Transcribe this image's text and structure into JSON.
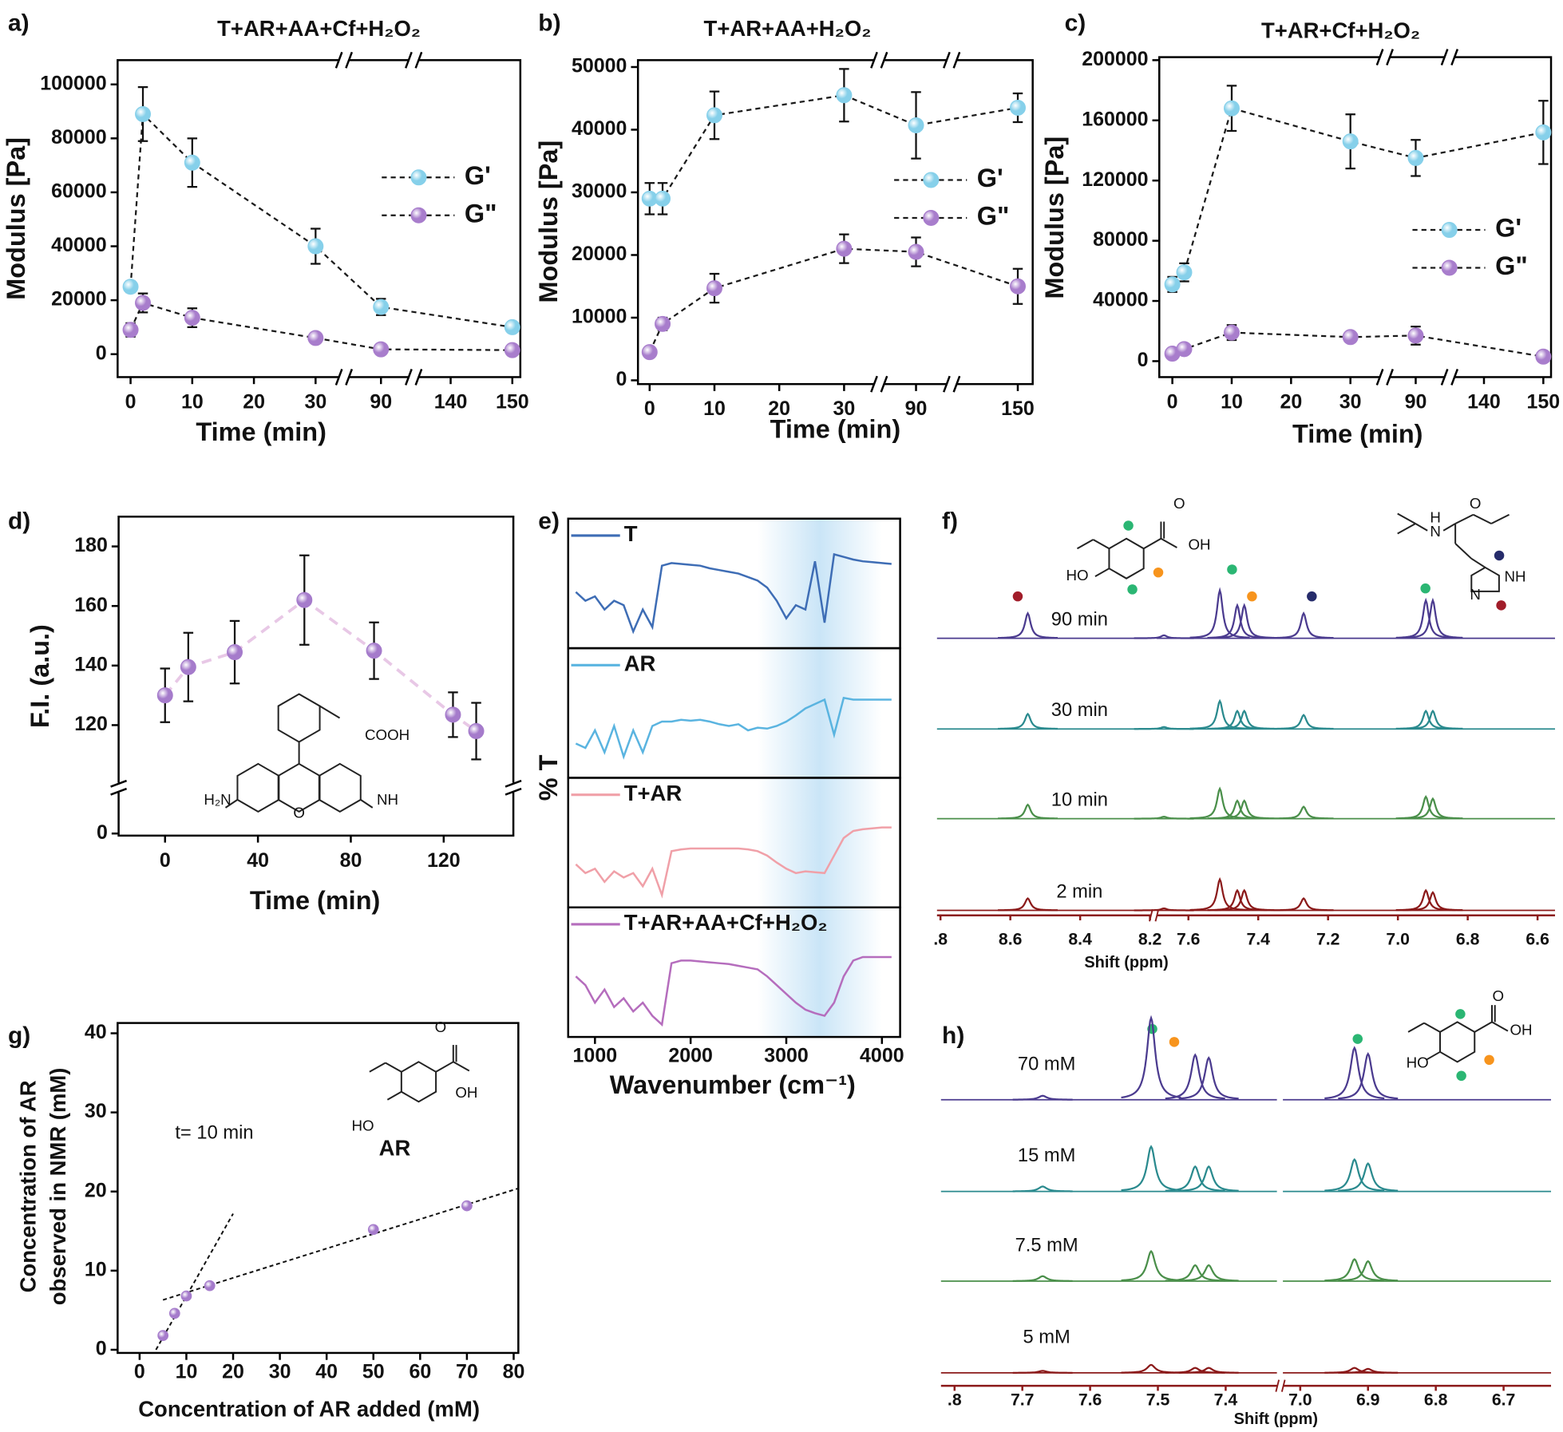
{
  "chart_data": [
    {
      "type": "line",
      "panel": "a)",
      "title": "T+AR+AA+Cf+H₂O₂",
      "x_label": "Time (min)",
      "y_label": "Modulus [Pa]",
      "xsegments": [
        [
          -2.1,
          34.6
        ],
        [
          84,
          95.3
        ],
        [
          134,
          151.3
        ]
      ],
      "xticks": [
        0,
        10,
        20,
        30,
        90,
        140,
        150
      ],
      "ylim": [
        -8500,
        109000
      ],
      "yticks": [
        0,
        20000,
        40000,
        60000,
        80000,
        100000
      ],
      "legend": "upper right",
      "x": [
        0,
        2,
        10,
        30,
        90,
        150
      ],
      "series": [
        {
          "name": "G'",
          "color": "#86d0ea",
          "line_color": "#1a1a1a",
          "values": [
            25000,
            89000,
            71000,
            40000,
            17500,
            10000
          ],
          "errors": [
            2000,
            10000,
            9000,
            6500,
            3000,
            1500
          ]
        },
        {
          "name": "G\"",
          "color": "#a87dcc",
          "line_color": "#1a1a1a",
          "values": [
            9000,
            19000,
            13500,
            6000,
            1800,
            1500
          ],
          "errors": [
            2500,
            3500,
            3500,
            1500,
            1500,
            1500
          ]
        }
      ]
    },
    {
      "type": "line",
      "panel": "b)",
      "title": "T+AR+AA+H₂O₂",
      "x_label": "Time (min)",
      "y_label": "Modulus [Pa]",
      "xsegments": [
        [
          -1.8,
          35.4
        ],
        [
          84.3,
          95.5
        ],
        [
          139.8,
          152.3
        ]
      ],
      "xticks": [
        0,
        10,
        20,
        30,
        90,
        150
      ],
      "ylim": [
        -600,
        51100
      ],
      "yticks": [
        0,
        10000,
        20000,
        30000,
        40000,
        50000
      ],
      "legend": "upper right",
      "x": [
        0,
        2,
        10,
        30,
        90,
        150
      ],
      "series": [
        {
          "name": "G'",
          "color": "#86d0ea",
          "line_color": "#1a1a1a",
          "values": [
            29000,
            29000,
            42300,
            45500,
            40700,
            43500
          ],
          "errors": [
            2500,
            2500,
            3800,
            4200,
            5300,
            2300
          ]
        },
        {
          "name": "G\"",
          "color": "#a87dcc",
          "line_color": "#1a1a1a",
          "values": [
            4500,
            9000,
            14700,
            21000,
            20500,
            15000
          ],
          "errors": [
            800,
            1000,
            2300,
            2300,
            2300,
            2800
          ]
        }
      ]
    },
    {
      "type": "line",
      "panel": "c)",
      "title": "T+AR+Cf+H₂O₂",
      "x_label": "Time (min)",
      "y_label": "Modulus [Pa]",
      "xsegments": [
        [
          -2.2,
          35.8
        ],
        [
          84.8,
          95.7
        ],
        [
          134.2,
          151.3
        ]
      ],
      "xticks": [
        0,
        10,
        20,
        30,
        90,
        140,
        150
      ],
      "ylim": [
        -10600,
        202000
      ],
      "yticks": [
        0,
        40000,
        80000,
        120000,
        160000,
        200000
      ],
      "legend": "center right",
      "x": [
        0,
        2,
        10,
        30,
        90,
        150
      ],
      "series": [
        {
          "name": "G'",
          "color": "#86d0ea",
          "line_color": "#1a1a1a",
          "values": [
            51000,
            59000,
            168000,
            146000,
            135000,
            152000
          ],
          "errors": [
            5000,
            6000,
            15000,
            18000,
            12000,
            21000
          ]
        },
        {
          "name": "G\"",
          "color": "#a87dcc",
          "line_color": "#1a1a1a",
          "values": [
            5000,
            8000,
            19000,
            16000,
            17000,
            3000
          ],
          "errors": [
            2000,
            2000,
            5000,
            3000,
            6000,
            3000
          ]
        }
      ]
    },
    {
      "type": "line",
      "panel": "d)",
      "x_label": "Time (min)",
      "y_label": "F.I. (a.u.)",
      "xlim": [
        -20,
        150
      ],
      "xticks": [
        0,
        40,
        80,
        120
      ],
      "ysegments": [
        [
          -0.7,
          15.4
        ],
        [
          99,
          190
        ]
      ],
      "yticks": [
        0,
        120,
        140,
        160,
        180
      ],
      "x": [
        0,
        10,
        30,
        60,
        90,
        124,
        134
      ],
      "series": [
        {
          "color": "#a57bcb",
          "line_color": "#e8c8e6",
          "values": [
            130,
            139.5,
            144.5,
            162,
            145,
            123.5,
            118
          ],
          "errors": [
            9,
            11.5,
            10.5,
            15,
            9.5,
            7.5,
            9.5
          ]
        }
      ],
      "annotations": [
        "COOH",
        "H₂N",
        "O",
        "NH"
      ]
    },
    {
      "type": "spectra",
      "panel": "e)",
      "x_label": "Wavenumber (cm⁻¹)",
      "y_label": "% T",
      "xlim": [
        720,
        4190
      ],
      "xticks": [
        1000,
        2000,
        3000,
        4000
      ],
      "ylim": [
        0,
        1
      ],
      "x": [
        800,
        900,
        1000,
        1100,
        1200,
        1300,
        1400,
        1500,
        1600,
        1700,
        1800,
        1900,
        2000,
        2100,
        2200,
        2300,
        2400,
        2500,
        2600,
        2700,
        2800,
        2900,
        3000,
        3100,
        3200,
        3300,
        3400,
        3500,
        3600,
        3700,
        3800,
        3900,
        4000,
        4100
      ],
      "series": [
        {
          "name": "T",
          "color": "#3e6db5",
          "values": [
            0.55,
            0.45,
            0.5,
            0.35,
            0.45,
            0.4,
            0.1,
            0.35,
            0.15,
            0.85,
            0.88,
            0.87,
            0.86,
            0.85,
            0.82,
            0.8,
            0.78,
            0.76,
            0.72,
            0.68,
            0.6,
            0.45,
            0.25,
            0.4,
            0.35,
            0.9,
            0.2,
            0.98,
            0.95,
            0.92,
            0.9,
            0.89,
            0.88,
            0.87
          ]
        },
        {
          "name": "AR",
          "color": "#5ab4e0",
          "values": [
            0.3,
            0.25,
            0.45,
            0.2,
            0.5,
            0.15,
            0.45,
            0.2,
            0.5,
            0.55,
            0.55,
            0.57,
            0.56,
            0.57,
            0.55,
            0.52,
            0.5,
            0.52,
            0.45,
            0.48,
            0.47,
            0.5,
            0.55,
            0.62,
            0.7,
            0.75,
            0.8,
            0.4,
            0.82,
            0.8,
            0.8,
            0.8,
            0.8,
            0.8
          ]
        },
        {
          "name": "T+AR",
          "color": "#f0a0a8",
          "values": [
            0.4,
            0.3,
            0.35,
            0.2,
            0.32,
            0.25,
            0.3,
            0.15,
            0.35,
            0.05,
            0.55,
            0.57,
            0.58,
            0.58,
            0.58,
            0.58,
            0.58,
            0.58,
            0.57,
            0.55,
            0.5,
            0.42,
            0.35,
            0.3,
            0.32,
            0.31,
            0.3,
            0.5,
            0.7,
            0.78,
            0.8,
            0.81,
            0.82,
            0.82
          ]
        },
        {
          "name": "T+AR+AA+Cf+H₂O₂",
          "color": "#b56dbd",
          "values": [
            0.6,
            0.5,
            0.3,
            0.45,
            0.25,
            0.35,
            0.2,
            0.3,
            0.15,
            0.05,
            0.75,
            0.78,
            0.78,
            0.77,
            0.76,
            0.75,
            0.74,
            0.72,
            0.7,
            0.68,
            0.6,
            0.5,
            0.4,
            0.3,
            0.22,
            0.18,
            0.15,
            0.3,
            0.6,
            0.78,
            0.82,
            0.82,
            0.82,
            0.82
          ]
        }
      ]
    },
    {
      "type": "nmr",
      "panel": "f)",
      "x_label": "Shift (ppm)",
      "axis_color": "#8b1a1a",
      "xsegments": [
        [
          8.81,
          8.19
        ],
        [
          7.7,
          6.55
        ]
      ],
      "xticks": [
        {
          "value": 8.8,
          "label": ".8"
        },
        8.6,
        8.4,
        8.2,
        7.6,
        7.4,
        7.2,
        {
          "value": 7,
          "label": "7.0"
        },
        6.8,
        6.6
      ],
      "x": [
        8.55,
        7.67,
        7.51,
        7.46,
        7.44,
        7.27,
        6.92,
        6.9
      ],
      "series": [
        {
          "name": "90 min",
          "color": "#4b3b8f",
          "values": [
            25,
            3,
            48,
            33,
            33,
            25,
            38,
            38
          ]
        },
        {
          "name": "30 min",
          "color": "#2a8a8e",
          "values": [
            15,
            2,
            28,
            18,
            18,
            14,
            18,
            18
          ]
        },
        {
          "name": "10 min",
          "color": "#4a8f4a",
          "values": [
            14,
            2,
            30,
            18,
            18,
            12,
            22,
            20
          ]
        },
        {
          "name": "2 min",
          "color": "#8b1a1a",
          "values": [
            12,
            2,
            31,
            20,
            20,
            12,
            20,
            18
          ]
        }
      ],
      "annotations": [
        "OH",
        "HO",
        "O",
        "H",
        "N",
        "O",
        "NH",
        "N"
      ]
    },
    {
      "type": "scatter",
      "panel": "g)",
      "x_label": "Concentration of AR added (mM)",
      "y_label": [
        "Concentration of AR",
        "observed in NMR (mM)"
      ],
      "xlim": [
        -4.7,
        81
      ],
      "xticks": [
        0,
        10,
        20,
        30,
        40,
        50,
        60,
        70,
        80
      ],
      "ylim": [
        -0.4,
        41.3
      ],
      "yticks": [
        0,
        10,
        20,
        30,
        40
      ],
      "x": [
        5,
        7.5,
        10,
        15,
        50,
        70
      ],
      "values": [
        1.8,
        4.6,
        6.8,
        8.1,
        15.2,
        18.2
      ],
      "color": "#a57bcb",
      "fit_lines": [
        {
          "x": [
            3.5,
            20
          ],
          "y": [
            0,
            17.2
          ]
        },
        {
          "x": [
            5,
            81
          ],
          "y": [
            6.3,
            20.4
          ]
        }
      ],
      "annotations": [
        "t= 10 min",
        "AR",
        "O",
        "OH",
        "HO"
      ]
    },
    {
      "type": "nmr",
      "panel": "h)",
      "x_label": "Shift (ppm)",
      "axis_color": "#8b1a1a",
      "xsegments": [
        [
          7.82,
          7.32
        ],
        [
          7.03,
          6.63
        ]
      ],
      "xticks": [
        {
          "value": 7.8,
          "label": ".8"
        },
        7.7,
        7.6,
        7.5,
        7.4,
        {
          "value": 7,
          "label": "7.0"
        },
        6.9,
        6.8,
        6.7
      ],
      "x": [
        7.67,
        7.51,
        7.445,
        7.425,
        6.92,
        6.9
      ],
      "series": [
        {
          "name": "70 mM",
          "color": "#4b3b8f",
          "values": [
            4,
            82,
            45,
            42,
            52,
            46
          ]
        },
        {
          "name": "15 mM",
          "color": "#2a8a8e",
          "values": [
            5,
            45,
            25,
            25,
            32,
            28
          ]
        },
        {
          "name": "7.5 mM",
          "color": "#4a8f4a",
          "values": [
            5,
            30,
            16,
            16,
            22,
            20
          ]
        },
        {
          "name": "5 mM",
          "color": "#8b1a1a",
          "values": [
            2,
            8,
            5,
            5,
            5,
            4
          ]
        }
      ],
      "annotations": [
        "O",
        "OH",
        "HO"
      ]
    }
  ]
}
